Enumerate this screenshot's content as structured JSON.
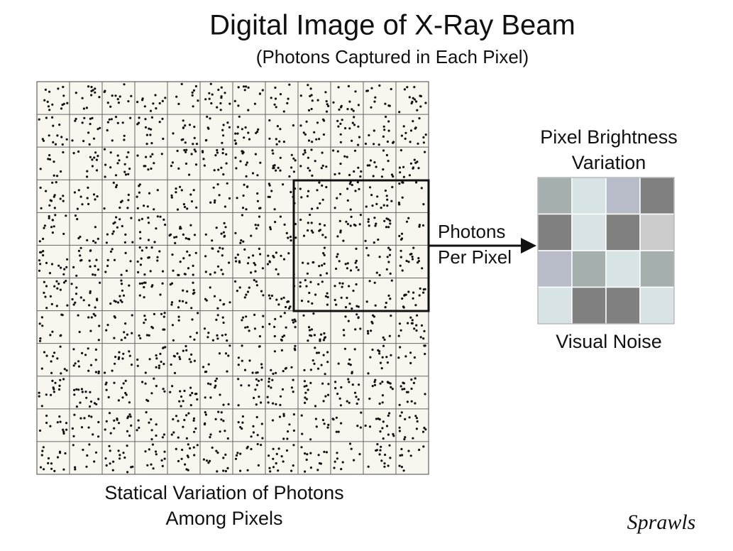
{
  "header": {
    "title": "Digital Image of X-Ray Beam",
    "subtitle": "(Photons Captured in Each Pixel)"
  },
  "labels": {
    "brightness": [
      "Pixel Brightness",
      "Variation"
    ],
    "arrow": [
      "Photons",
      "Per Pixel"
    ],
    "noise": "Visual Noise",
    "variation": [
      "Statical Variation of Photons",
      "Among Pixels"
    ],
    "signature": "Sprawls"
  }
}
